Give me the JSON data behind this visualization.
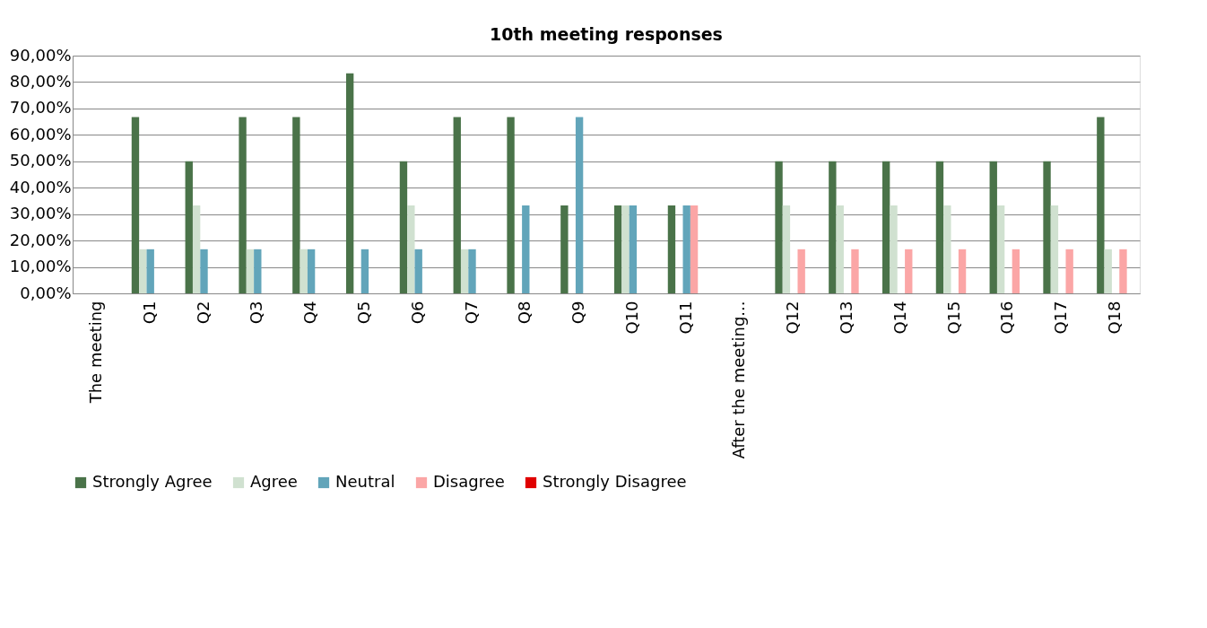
{
  "chart_data": {
    "type": "bar",
    "title": "10th meeting responses",
    "categories": [
      "The meeting",
      "Q1",
      "Q2",
      "Q3",
      "Q4",
      "Q5",
      "Q6",
      "Q7",
      "Q8",
      "Q9",
      "Q10",
      "Q11",
      "After the meeting...",
      "Q12",
      "Q13",
      "Q14",
      "Q15",
      "Q16",
      "Q17",
      "Q18"
    ],
    "series": [
      {
        "name": "Strongly Agree",
        "color": "#4a7349",
        "values": [
          null,
          66.7,
          50,
          66.7,
          66.7,
          83.3,
          50,
          66.7,
          66.7,
          33.3,
          33.3,
          33.3,
          null,
          50,
          50,
          50,
          50,
          50,
          50,
          66.7
        ]
      },
      {
        "name": "Agree",
        "color": "#d0e1d0",
        "values": [
          null,
          16.7,
          33.3,
          16.7,
          16.7,
          0,
          33.3,
          16.7,
          0,
          0,
          33.3,
          0,
          null,
          33.3,
          33.3,
          33.3,
          33.3,
          33.3,
          33.3,
          16.7
        ]
      },
      {
        "name": "Neutral",
        "color": "#62a5ba",
        "values": [
          null,
          16.7,
          16.7,
          16.7,
          16.7,
          16.7,
          16.7,
          16.7,
          33.3,
          66.7,
          33.3,
          33.3,
          null,
          0,
          0,
          0,
          0,
          0,
          0,
          0
        ]
      },
      {
        "name": "Disagree",
        "color": "#fba6a6",
        "values": [
          null,
          0,
          0,
          0,
          0,
          0,
          0,
          0,
          0,
          0,
          0,
          33.3,
          null,
          16.7,
          16.7,
          16.7,
          16.7,
          16.7,
          16.7,
          16.7
        ]
      },
      {
        "name": "Strongly Disagree",
        "color": "#e00000",
        "values": [
          null,
          0,
          0,
          0,
          0,
          0,
          0,
          0,
          0,
          0,
          0,
          0,
          null,
          0,
          0,
          0,
          0,
          0,
          0,
          0
        ]
      }
    ],
    "ylim": [
      0,
      90
    ],
    "yticks": [
      {
        "value": 0,
        "label": "0,00%"
      },
      {
        "value": 10,
        "label": "10,00%"
      },
      {
        "value": 20,
        "label": "20,00%"
      },
      {
        "value": 30,
        "label": "30,00%"
      },
      {
        "value": 40,
        "label": "40,00%"
      },
      {
        "value": 50,
        "label": "50,00%"
      },
      {
        "value": 60,
        "label": "60,00%"
      },
      {
        "value": 70,
        "label": "70,00%"
      },
      {
        "value": 80,
        "label": "80,00%"
      },
      {
        "value": 90,
        "label": "90,00%"
      }
    ],
    "grid": "y",
    "legend": "bottom"
  }
}
